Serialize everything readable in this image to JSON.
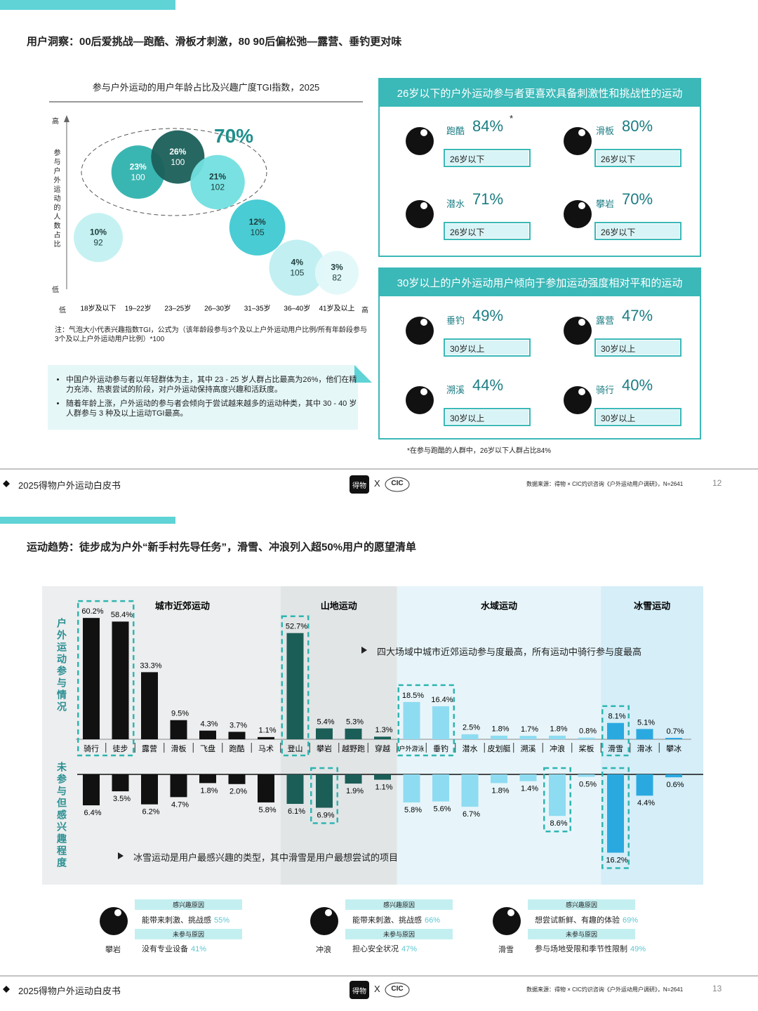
{
  "slide1": {
    "title": "用户洞察：00后爱挑战—跑酷、滑板才刺激，80 90后偏松弛—露营、垂钓更对味",
    "note": "注：气泡大小代表兴趣指数TGI，公式为（该年龄段参与3个及以上户外运动用户比例/所有年龄段参与3个及以上户外运动用户比例）*100",
    "bullets": [
      "中国户外运动参与者以年轻群体为主，其中 23 - 25 岁人群占比最高为26%，他们在精力充沛、热衷尝试的阶段，对户外运动保持高度兴趣和活跃度。",
      "随着年龄上涨，户外运动的参与者会倾向于尝试越来越多的运动种类，其中 30 - 40 岁人群参与 3 种及以上运动TGI最高。"
    ],
    "panels": [
      {
        "header": "26岁以下的户外运动参与者更喜欢具备刺激性和挑战性的运动",
        "items": [
          {
            "sport": "跑酷",
            "share": "84%",
            "mark": "*",
            "tag": "26岁以下"
          },
          {
            "sport": "滑板",
            "share": "80%",
            "tag": "26岁以下"
          },
          {
            "sport": "潜水",
            "share": "71%",
            "tag": "26岁以下"
          },
          {
            "sport": "攀岩",
            "share": "70%",
            "tag": "26岁以下"
          }
        ]
      },
      {
        "header": "30岁以上的户外运动用户倾向于参加运动强度相对平和的运动",
        "items": [
          {
            "sport": "垂钓",
            "share": "49%",
            "tag": "30岁以上"
          },
          {
            "sport": "露营",
            "share": "47%",
            "tag": "30岁以上"
          },
          {
            "sport": "溯溪",
            "share": "44%",
            "tag": "30岁以上"
          },
          {
            "sport": "骑行",
            "share": "40%",
            "tag": "30岁以上"
          }
        ]
      }
    ],
    "footnote": "*在参与跑酷的人群中，26岁以下人群占比84%",
    "footer": {
      "report": "2025得物户外运动白皮书",
      "brand": "得物",
      "x": "X",
      "partner": "CIC",
      "source": "数据来源：得物 × CIC灼识咨询《户外运动用户调研》，N=2641",
      "page": "12"
    }
  },
  "slide2": {
    "title": "运动趋势：徒步成为户外“新手村先导任务”，滑雪、冲浪列入超50%用户的愿望清单",
    "annotations": [
      "四大场域中城市近郊运动参与度最高，所有运动中骑行参与度最高",
      "冰雪运动是用户最感兴趣的类型，其中滑雪是用户最想尝试的项目"
    ],
    "cards": [
      {
        "sport": "攀岩",
        "interest_header": "感兴趣原因",
        "interest_reason": "能带来刺激、挑战感",
        "interest_share": "55%",
        "barrier_header": "未参与原因",
        "barrier_reason": "没有专业设备",
        "barrier_share": "41%"
      },
      {
        "sport": "冲浪",
        "interest_header": "感兴趣原因",
        "interest_reason": "能带来刺激、挑战感",
        "interest_share": "66%",
        "barrier_header": "未参与原因",
        "barrier_reason": "担心安全状况",
        "barrier_share": "47%"
      },
      {
        "sport": "滑雪",
        "interest_header": "感兴趣原因",
        "interest_reason": "想尝试新鲜、有趣的体验",
        "interest_share": "69%",
        "barrier_header": "未参与原因",
        "barrier_reason": "参与场地受限和季节性限制",
        "barrier_share": "49%"
      }
    ],
    "footer": {
      "report": "2025得物户外运动白皮书",
      "brand": "得物",
      "x": "X",
      "partner": "CIC",
      "source": "数据来源：得物 × CIC灼识咨询《户外运动用户调研》，N=2641",
      "page": "13"
    }
  },
  "chart_data": [
    {
      "type": "bubble",
      "title": "参与户外运动的用户年龄占比及兴趣广度TGI指数，2025",
      "y_label": "参与户外运动的人数占比",
      "y_high": "高",
      "y_low": "低",
      "x_low": "低",
      "x_high": "高",
      "annotation": "70%",
      "categories": [
        "18岁及以下",
        "19–22岁",
        "23–25岁",
        "26–30岁",
        "31–35岁",
        "36–40岁",
        "41岁及以上"
      ],
      "values": [
        10,
        23,
        26,
        21,
        12,
        4,
        3
      ],
      "value_labels": [
        "10%",
        "23%",
        "26%",
        "21%",
        "12%",
        "4%",
        "3%"
      ],
      "sizes": [
        92,
        100,
        100,
        102,
        105,
        105,
        82
      ],
      "colors": [
        "#c2f0f1",
        "#2fb2ae",
        "#1b5f5a",
        "#72dfdf",
        "#3fc9d1",
        "#bfeef1",
        "#e2f8f9"
      ],
      "ylim": [
        0,
        30
      ]
    },
    {
      "type": "diverging-bar",
      "groups": [
        {
          "name": "城市近郊运动",
          "color": "#eceeef"
        },
        {
          "name": "山地运动",
          "color": "#e1e5e6"
        },
        {
          "name": "水域运动",
          "color": "#e7f5fa"
        },
        {
          "name": "冰雪运动",
          "color": "#d5eef8"
        }
      ],
      "categories": [
        "骑行",
        "徒步",
        "露营",
        "滑板",
        "飞盘",
        "跑酷",
        "马术",
        "登山",
        "攀岩",
        "越野跑",
        "穿越",
        "户外游泳",
        "垂钓",
        "潜水",
        "皮划艇",
        "溯溪",
        "冲浪",
        "桨板",
        "滑雪",
        "滑冰",
        "攀冰"
      ],
      "bar_colors": [
        "#111111",
        "#111111",
        "#111111",
        "#111111",
        "#111111",
        "#111111",
        "#111111",
        "#1b5e57",
        "#1b5e57",
        "#1b5e57",
        "#1b5e57",
        "#8edcf1",
        "#8edcf1",
        "#8edcf1",
        "#8edcf1",
        "#8edcf1",
        "#8edcf1",
        "#8edcf1",
        "#2aa9e1",
        "#2aa9e1",
        "#2aa9e1"
      ],
      "series": [
        {
          "name": "户外运动参与情况",
          "values": [
            60.2,
            58.4,
            33.3,
            9.5,
            4.3,
            3.7,
            1.1,
            52.7,
            5.4,
            5.3,
            1.3,
            18.5,
            16.4,
            2.5,
            1.8,
            1.7,
            1.8,
            0.8,
            8.1,
            5.1,
            0.7
          ],
          "value_labels": [
            "60.2%",
            "58.4%",
            "33.3%",
            "9.5%",
            "4.3%",
            "3.7%",
            "1.1%",
            "52.7%",
            "5.4%",
            "5.3%",
            "1.3%",
            "18.5%",
            "16.4%",
            "2.5%",
            "1.8%",
            "1.7%",
            "1.8%",
            "0.8%",
            "8.1%",
            "5.1%",
            "0.7%"
          ]
        },
        {
          "name": "未参与但感兴趣程度",
          "axis": "y2",
          "values": [
            6.4,
            3.5,
            6.2,
            4.7,
            1.8,
            2.0,
            5.8,
            6.1,
            6.9,
            1.9,
            1.1,
            5.8,
            5.6,
            6.7,
            1.8,
            1.4,
            8.6,
            0.5,
            16.2,
            4.4,
            0.6
          ],
          "value_labels": [
            "6.4%",
            "3.5%",
            "6.2%",
            "4.7%",
            "1.8%",
            "2.0%",
            "5.8%",
            "6.1%",
            "6.9%",
            "1.9%",
            "1.1%",
            "5.8%",
            "5.6%",
            "6.7%",
            "1.8%",
            "1.4%",
            "8.6%",
            "0.5%",
            "16.2%",
            "4.4%",
            "0.6%"
          ]
        }
      ],
      "ylim": [
        0,
        62
      ],
      "y2lim": [
        0,
        17
      ]
    }
  ]
}
